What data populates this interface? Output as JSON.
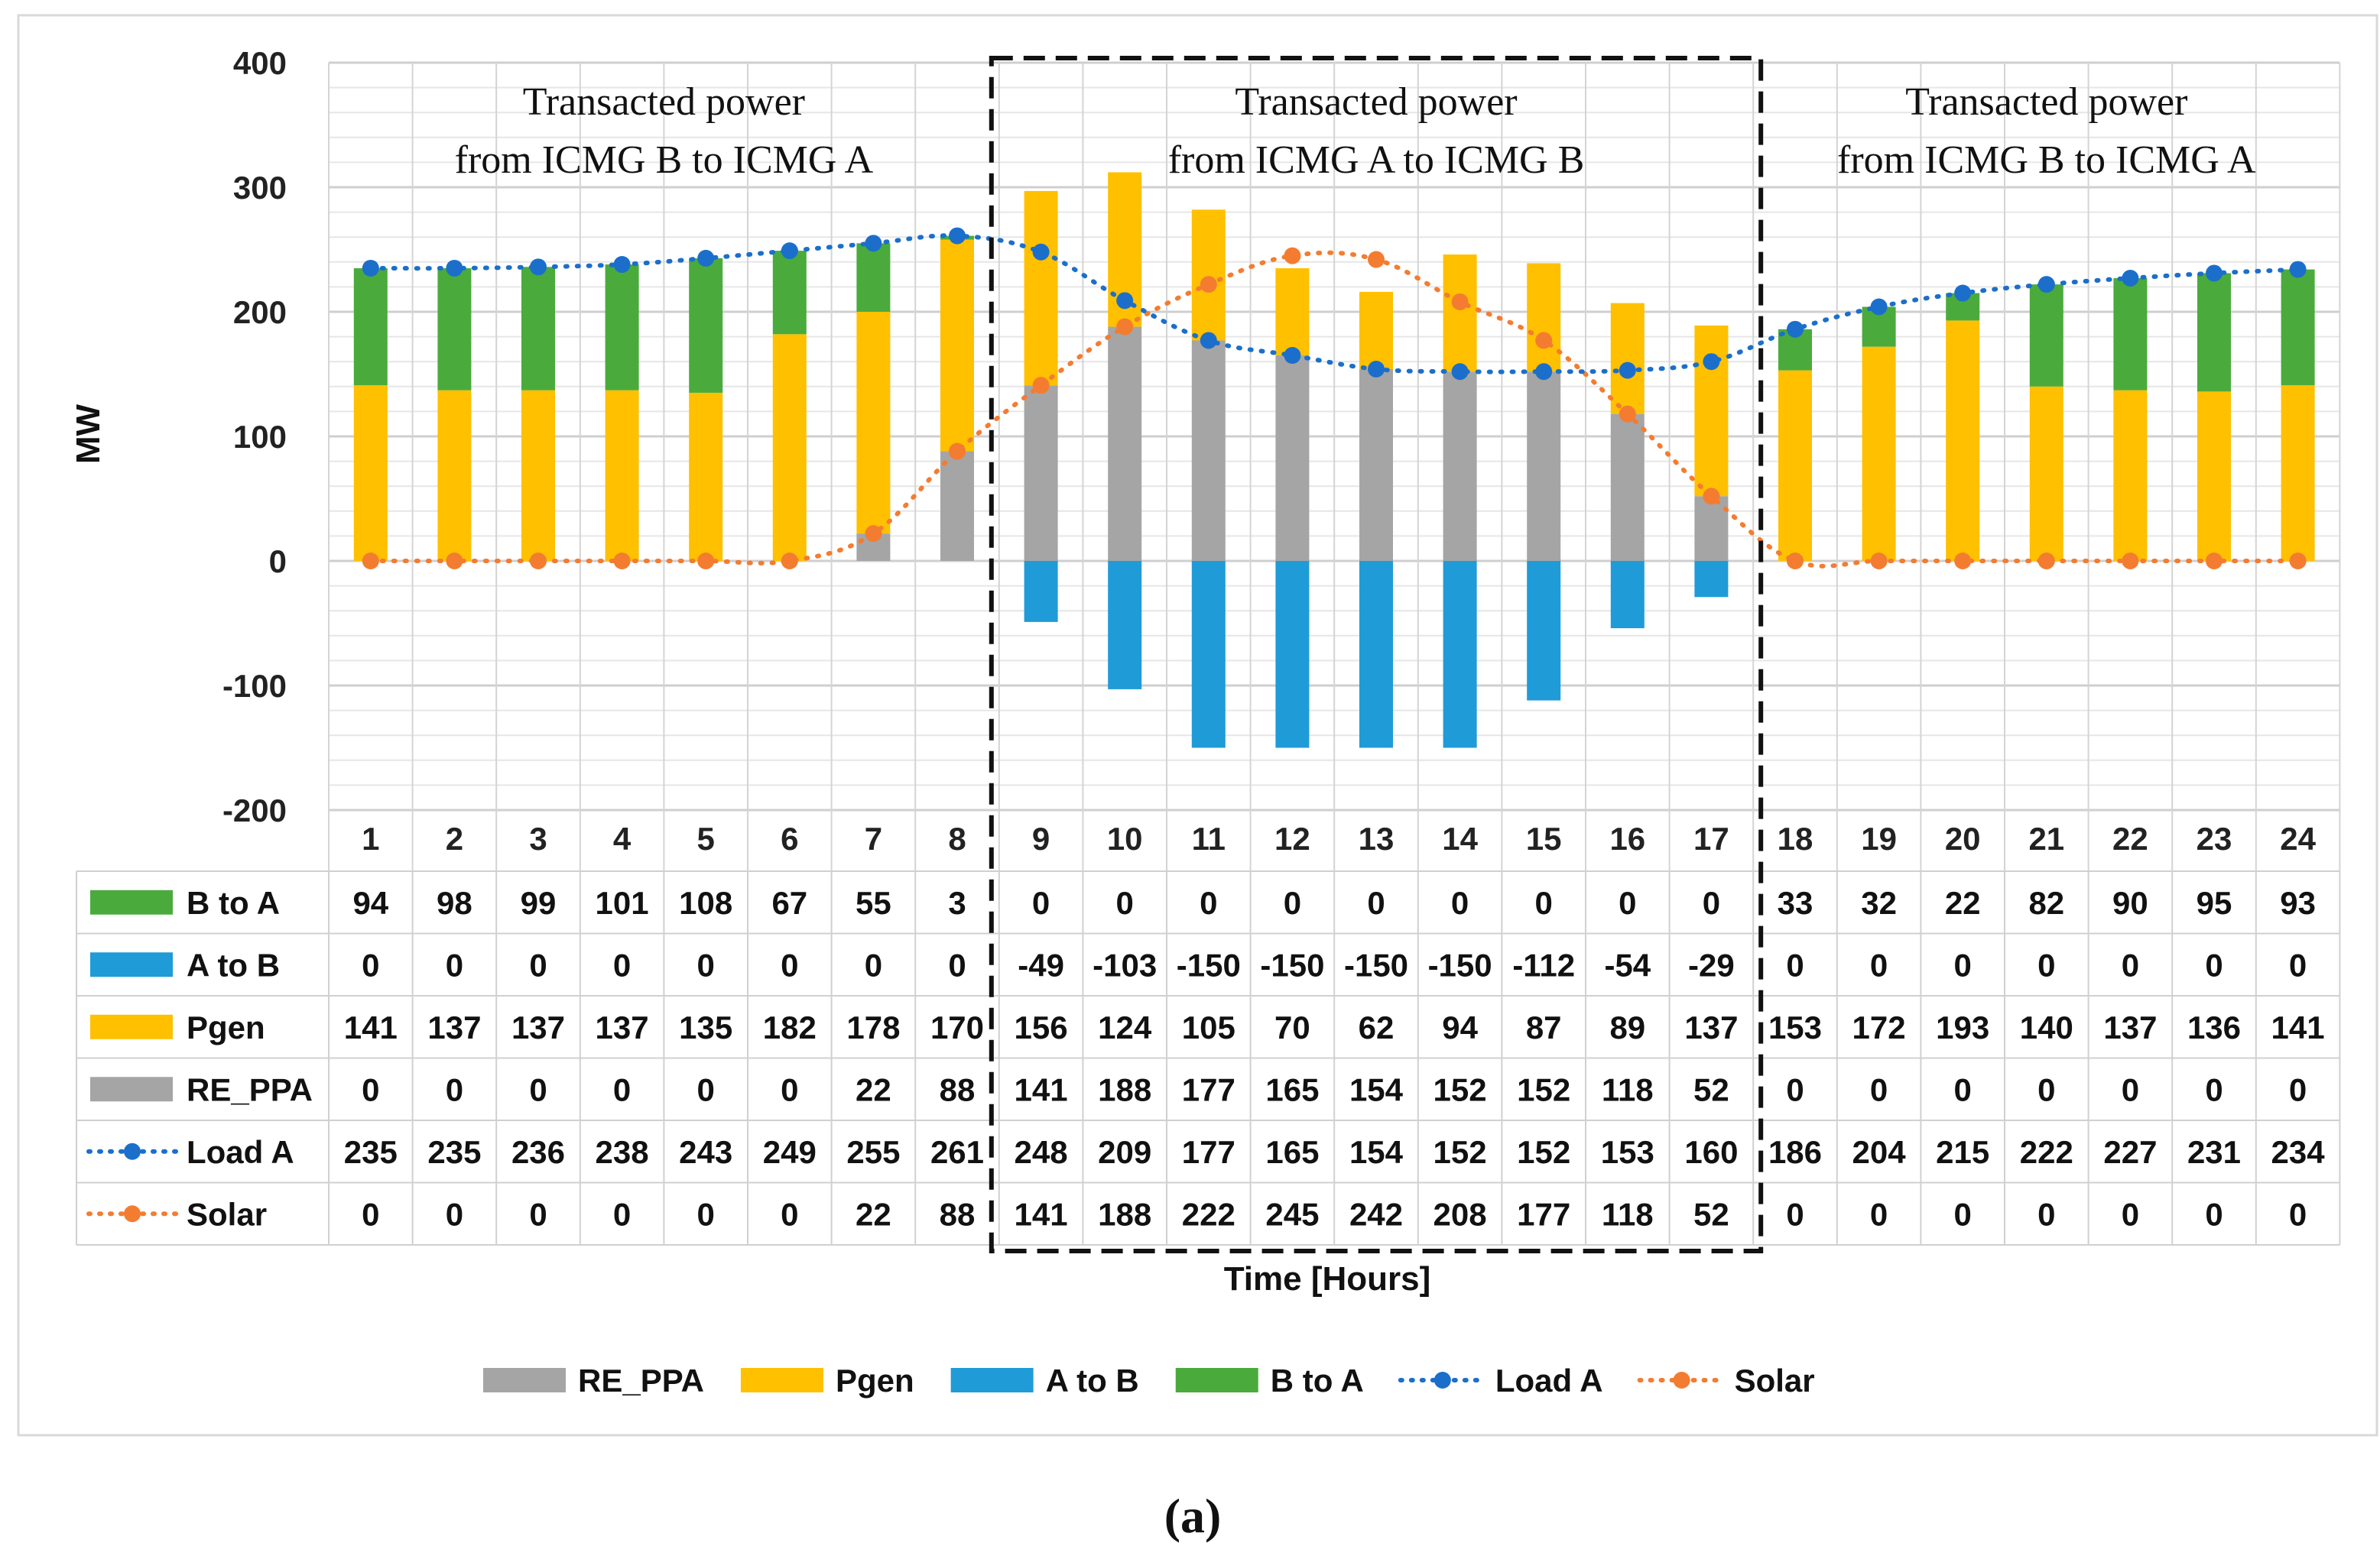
{
  "chart_data": {
    "type": "bar",
    "ylabel": "MW",
    "xlabel": "Time [Hours]",
    "ylim": [
      -200,
      400
    ],
    "yticks": [
      400,
      300,
      200,
      100,
      0,
      -100,
      -200
    ],
    "categories": [
      "1",
      "2",
      "3",
      "4",
      "5",
      "6",
      "7",
      "8",
      "9",
      "10",
      "11",
      "12",
      "13",
      "14",
      "15",
      "16",
      "17",
      "18",
      "19",
      "20",
      "21",
      "22",
      "23",
      "24"
    ],
    "series": [
      {
        "key": "btoa",
        "name": "B to A",
        "kind": "bar",
        "color": "#4aab3c",
        "values": [
          94,
          98,
          99,
          101,
          108,
          67,
          55,
          3,
          0,
          0,
          0,
          0,
          0,
          0,
          0,
          0,
          0,
          33,
          32,
          22,
          82,
          90,
          95,
          93
        ]
      },
      {
        "key": "atob",
        "name": "A to B",
        "kind": "bar",
        "color": "#1f9bd7",
        "values": [
          0,
          0,
          0,
          0,
          0,
          0,
          0,
          0,
          -49,
          -103,
          -150,
          -150,
          -150,
          -150,
          -112,
          -54,
          -29,
          0,
          0,
          0,
          0,
          0,
          0,
          0
        ]
      },
      {
        "key": "pgen",
        "name": "Pgen",
        "kind": "bar",
        "color": "#ffc000",
        "values": [
          141,
          137,
          137,
          137,
          135,
          182,
          178,
          170,
          156,
          124,
          105,
          70,
          62,
          94,
          87,
          89,
          137,
          153,
          172,
          193,
          140,
          137,
          136,
          141
        ]
      },
      {
        "key": "reppa",
        "name": "RE_PPA",
        "kind": "bar",
        "color": "#a5a5a5",
        "values": [
          0,
          0,
          0,
          0,
          0,
          0,
          22,
          88,
          141,
          188,
          177,
          165,
          154,
          152,
          152,
          118,
          52,
          0,
          0,
          0,
          0,
          0,
          0,
          0
        ]
      },
      {
        "key": "loada",
        "name": "Load A",
        "kind": "line",
        "color": "#1b6fcb",
        "values": [
          235,
          235,
          236,
          238,
          243,
          249,
          255,
          261,
          248,
          209,
          177,
          165,
          154,
          152,
          152,
          153,
          160,
          186,
          204,
          215,
          222,
          227,
          231,
          234
        ]
      },
      {
        "key": "solar",
        "name": "Solar",
        "kind": "line",
        "color": "#f47c30",
        "values": [
          0,
          0,
          0,
          0,
          0,
          0,
          22,
          88,
          141,
          188,
          222,
          245,
          242,
          208,
          177,
          118,
          52,
          0,
          0,
          0,
          0,
          0,
          0,
          0
        ]
      }
    ],
    "legend_order": [
      "reppa",
      "pgen",
      "atob",
      "btoa",
      "loada",
      "solar"
    ],
    "legend_position": "bottom",
    "annotations": [
      {
        "line1": "Transacted power",
        "line2": "from ICMG B to ICMG A",
        "hours": [
          1,
          8
        ]
      },
      {
        "line1": "Transacted power",
        "line2": "from ICMG A to ICMG B",
        "hours": [
          9,
          17
        ]
      },
      {
        "line1": "Transacted power",
        "line2": "from ICMG B to ICMG A",
        "hours": [
          18,
          24
        ]
      }
    ],
    "highlight_box_hours": [
      9,
      17
    ]
  },
  "caption": "(a)"
}
